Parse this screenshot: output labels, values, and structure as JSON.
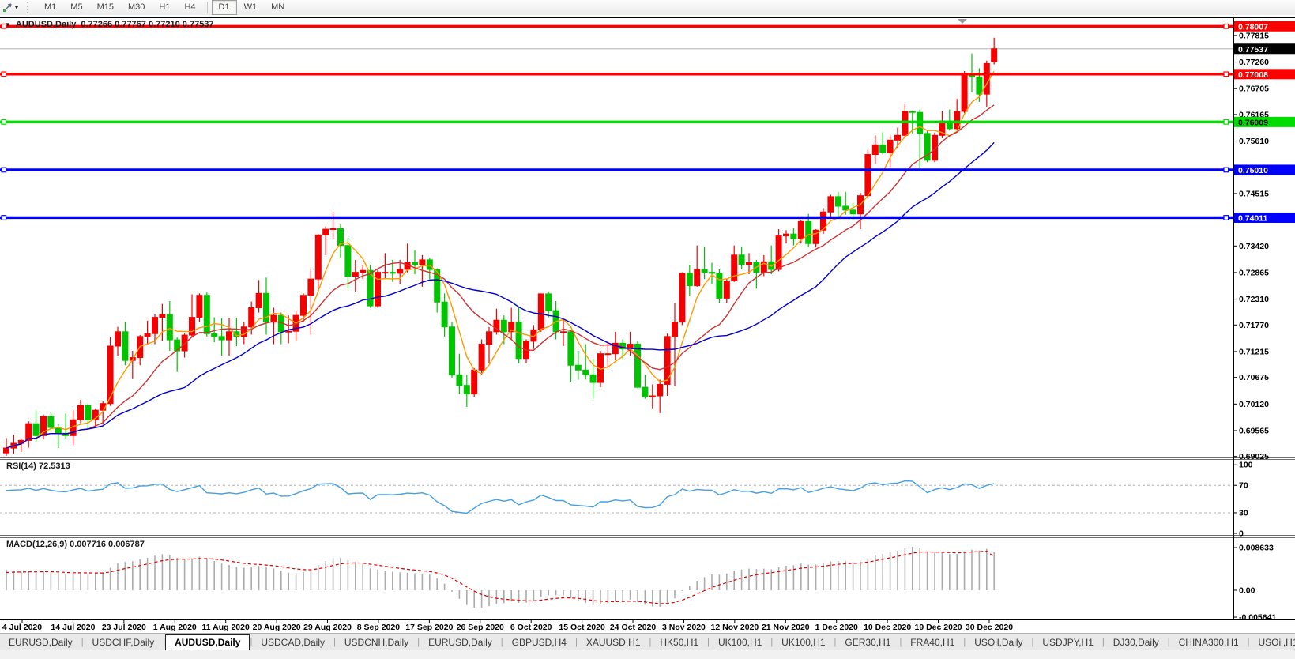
{
  "toolbar": {
    "timeframes": [
      "M1",
      "M5",
      "M15",
      "M30",
      "H1",
      "H4",
      "D1",
      "W1",
      "MN"
    ],
    "active_timeframe": "D1"
  },
  "icons": {
    "cursor_tool": "cursor-icon",
    "caret_down": "▾",
    "title_marker": "▼",
    "shift_marker": "▼",
    "tab_separator": "|",
    "scroll_left": "◄",
    "scroll_right": "►"
  },
  "chart": {
    "title": {
      "symbol": "AUDUSD,Daily",
      "ohlc": "0.77266 0.77767 0.77210 0.77537"
    },
    "price_axis": {
      "ticks": [
        "0.77815",
        "0.77260",
        "0.76705",
        "0.76165",
        "0.75610",
        "0.74515",
        "0.73420",
        "0.72865",
        "0.72310",
        "0.71770",
        "0.71215",
        "0.70675",
        "0.70120",
        "0.69565",
        "0.69025"
      ],
      "current_price": "0.77537"
    },
    "h_lines": [
      {
        "label": "0.78007",
        "value": 0.78007,
        "color": "#ff0000",
        "text": "#ffffff"
      },
      {
        "label": "0.77008",
        "value": 0.77008,
        "color": "#ff0000",
        "text": "#ffffff"
      },
      {
        "label": "0.76009",
        "value": 0.76009,
        "color": "#00dc00",
        "text": "#000000"
      },
      {
        "label": "0.75010",
        "value": 0.7501,
        "color": "#0000ff",
        "text": "#ffffff"
      },
      {
        "label": "0.74011",
        "value": 0.74011,
        "color": "#0000ff",
        "text": "#ffffff"
      }
    ],
    "date_axis": [
      "4 Jul 2020",
      "14 Jul 2020",
      "23 Jul 2020",
      "1 Aug 2020",
      "11 Aug 2020",
      "20 Aug 2020",
      "29 Aug 2020",
      "8 Sep 2020",
      "17 Sep 2020",
      "26 Sep 2020",
      "6 Oct 2020",
      "15 Oct 2020",
      "24 Oct 2020",
      "3 Nov 2020",
      "12 Nov 2020",
      "21 Nov 2020",
      "1 Dec 2020",
      "10 Dec 2020",
      "19 Dec 2020",
      "30 Dec 2020"
    ]
  },
  "rsi": {
    "label": "RSI(14) 72.5313",
    "period": 14,
    "value": 72.5313,
    "levels": [
      70,
      30
    ],
    "axis": [
      "100",
      "70",
      "30",
      "0"
    ]
  },
  "macd": {
    "label": "MACD(12,26,9) 0.007716 0.006787",
    "macd": 0.007716,
    "signal": 0.006787,
    "axis_top": "0.008633",
    "axis_zero": "0.00",
    "axis_bottom": "-0.005641"
  },
  "tabs": {
    "items": [
      "EURUSD,Daily",
      "USDCHF,Daily",
      "AUDUSD,Daily",
      "USDCAD,Daily",
      "USDCNH,Daily",
      "EURUSD,Daily",
      "GBPUSD,H4",
      "XAUUSD,H1",
      "HK50,H1",
      "UK100,H1",
      "UK100,H1",
      "GER30,H1",
      "FRA40,H1",
      "USOil,Daily",
      "USDJPY,H1",
      "DJ30,Daily",
      "CHINA300,H1",
      "USOil,H1"
    ],
    "active_index": 2
  },
  "colors": {
    "candle_up": "#f40000",
    "candle_down": "#00c400",
    "ma_fast": "#ff9900",
    "ma_mid": "#cd3333",
    "ma_slow": "#0000cc",
    "rsi_line": "#44a0e0",
    "rsi_level": "#b5b5b5",
    "macd_hist": "#ababab",
    "macd_signal": "#e00000",
    "bid_line": "#c0c0c0",
    "bid_badge": "#000000"
  },
  "chart_data": {
    "type": "candlestick",
    "symbol": "AUDUSD",
    "timeframe": "Daily",
    "overlays": [
      {
        "name": "SMA fast",
        "period": 5,
        "color_key": "ma_fast"
      },
      {
        "name": "SMA mid",
        "period": 12,
        "color_key": "ma_mid"
      },
      {
        "name": "SMA slow",
        "period": 25,
        "color_key": "ma_slow"
      }
    ],
    "ylim": [
      0.6902,
      0.7816
    ],
    "candles": [
      [
        "2020-07-01",
        0.691,
        0.6941,
        0.6904,
        0.692
      ],
      [
        "2020-07-02",
        0.692,
        0.6948,
        0.6908,
        0.693
      ],
      [
        "2020-07-03",
        0.693,
        0.694,
        0.6912,
        0.6936
      ],
      [
        "2020-07-06",
        0.6936,
        0.6976,
        0.6921,
        0.6971
      ],
      [
        "2020-07-07",
        0.6971,
        0.6998,
        0.6934,
        0.6946
      ],
      [
        "2020-07-08",
        0.6946,
        0.699,
        0.6938,
        0.6986
      ],
      [
        "2020-07-09",
        0.6986,
        0.6996,
        0.6954,
        0.6963
      ],
      [
        "2020-07-10",
        0.6963,
        0.6971,
        0.692,
        0.6951
      ],
      [
        "2020-07-13",
        0.6951,
        0.6992,
        0.694,
        0.6946
      ],
      [
        "2020-07-14",
        0.6946,
        0.6999,
        0.6926,
        0.6979
      ],
      [
        "2020-07-15",
        0.6979,
        0.7021,
        0.6972,
        0.7009
      ],
      [
        "2020-07-16",
        0.7009,
        0.7013,
        0.6961,
        0.6979
      ],
      [
        "2020-07-17",
        0.6979,
        0.7003,
        0.6963,
        0.6999
      ],
      [
        "2020-07-20",
        0.6999,
        0.7019,
        0.6969,
        0.7013
      ],
      [
        "2020-07-21",
        0.7013,
        0.7152,
        0.7008,
        0.7133
      ],
      [
        "2020-07-22",
        0.7133,
        0.7173,
        0.7113,
        0.7163
      ],
      [
        "2020-07-23",
        0.7163,
        0.7183,
        0.7093,
        0.7103
      ],
      [
        "2020-07-24",
        0.7103,
        0.7123,
        0.7064,
        0.7109
      ],
      [
        "2020-07-27",
        0.7109,
        0.7156,
        0.7093,
        0.7153
      ],
      [
        "2020-07-28",
        0.7153,
        0.7186,
        0.7136,
        0.7159
      ],
      [
        "2020-07-29",
        0.7159,
        0.7199,
        0.7137,
        0.7193
      ],
      [
        "2020-07-30",
        0.7193,
        0.7221,
        0.7143,
        0.7199
      ],
      [
        "2020-07-31",
        0.7199,
        0.7227,
        0.7123,
        0.7146
      ],
      [
        "2020-08-03",
        0.7146,
        0.7151,
        0.7079,
        0.7123
      ],
      [
        "2020-08-04",
        0.7123,
        0.7159,
        0.7109,
        0.7156
      ],
      [
        "2020-08-05",
        0.7156,
        0.7241,
        0.7151,
        0.7193
      ],
      [
        "2020-08-06",
        0.7193,
        0.7243,
        0.7183,
        0.7239
      ],
      [
        "2020-08-07",
        0.7239,
        0.7245,
        0.7153,
        0.7159
      ],
      [
        "2020-08-10",
        0.7159,
        0.7193,
        0.7141,
        0.7153
      ],
      [
        "2020-08-11",
        0.7153,
        0.7191,
        0.7113,
        0.7146
      ],
      [
        "2020-08-12",
        0.7146,
        0.7192,
        0.7113,
        0.7163
      ],
      [
        "2020-08-13",
        0.7163,
        0.7192,
        0.7133,
        0.7153
      ],
      [
        "2020-08-14",
        0.7153,
        0.7183,
        0.7137,
        0.7173
      ],
      [
        "2020-08-17",
        0.7173,
        0.7226,
        0.7157,
        0.7213
      ],
      [
        "2020-08-18",
        0.7213,
        0.7271,
        0.7203,
        0.7243
      ],
      [
        "2020-08-19",
        0.7243,
        0.7276,
        0.7157,
        0.7183
      ],
      [
        "2020-08-20",
        0.7183,
        0.7213,
        0.7137,
        0.7197
      ],
      [
        "2020-08-21",
        0.7197,
        0.7203,
        0.7137,
        0.7163
      ],
      [
        "2020-08-24",
        0.7163,
        0.7197,
        0.7139,
        0.7164
      ],
      [
        "2020-08-25",
        0.7164,
        0.7207,
        0.7143,
        0.7197
      ],
      [
        "2020-08-26",
        0.7197,
        0.7243,
        0.7183,
        0.7239
      ],
      [
        "2020-08-27",
        0.7239,
        0.7293,
        0.7157,
        0.7273
      ],
      [
        "2020-08-28",
        0.7273,
        0.7367,
        0.7253,
        0.7365
      ],
      [
        "2020-08-31",
        0.7365,
        0.7383,
        0.7323,
        0.7377
      ],
      [
        "2020-09-01",
        0.7377,
        0.7414,
        0.7357,
        0.7378
      ],
      [
        "2020-09-02",
        0.7378,
        0.7387,
        0.7317,
        0.7343
      ],
      [
        "2020-09-03",
        0.7343,
        0.7359,
        0.7253,
        0.7279
      ],
      [
        "2020-09-04",
        0.7279,
        0.7313,
        0.7247,
        0.7287
      ],
      [
        "2020-09-07",
        0.7287,
        0.7303,
        0.7273,
        0.7291
      ],
      [
        "2020-09-08",
        0.7291,
        0.7303,
        0.7213,
        0.7217
      ],
      [
        "2020-09-09",
        0.7217,
        0.7293,
        0.7213,
        0.7287
      ],
      [
        "2020-09-10",
        0.7287,
        0.7327,
        0.7273,
        0.7287
      ],
      [
        "2020-09-11",
        0.7287,
        0.7313,
        0.7267,
        0.7285
      ],
      [
        "2020-09-14",
        0.7285,
        0.7313,
        0.7263,
        0.7293
      ],
      [
        "2020-09-15",
        0.7293,
        0.7347,
        0.7287,
        0.7307
      ],
      [
        "2020-09-16",
        0.7307,
        0.7333,
        0.7283,
        0.7303
      ],
      [
        "2020-09-17",
        0.7303,
        0.7323,
        0.7257,
        0.7313
      ],
      [
        "2020-09-18",
        0.7313,
        0.7317,
        0.7273,
        0.7293
      ],
      [
        "2020-09-21",
        0.7293,
        0.7295,
        0.7203,
        0.7225
      ],
      [
        "2020-09-22",
        0.7225,
        0.7243,
        0.7153,
        0.7173
      ],
      [
        "2020-09-23",
        0.7173,
        0.7183,
        0.7067,
        0.7073
      ],
      [
        "2020-09-24",
        0.7073,
        0.7117,
        0.7033,
        0.7051
      ],
      [
        "2020-09-25",
        0.7051,
        0.7073,
        0.7006,
        0.7033
      ],
      [
        "2020-09-28",
        0.7033,
        0.7087,
        0.7027,
        0.7083
      ],
      [
        "2020-09-29",
        0.7083,
        0.7147,
        0.7073,
        0.7137
      ],
      [
        "2020-09-30",
        0.7137,
        0.7173,
        0.7097,
        0.7163
      ],
      [
        "2020-10-01",
        0.7163,
        0.7211,
        0.7157,
        0.7187
      ],
      [
        "2020-10-02",
        0.7187,
        0.7197,
        0.7137,
        0.7163
      ],
      [
        "2020-10-05",
        0.7163,
        0.7213,
        0.7147,
        0.7183
      ],
      [
        "2020-10-06",
        0.7183,
        0.7213,
        0.7097,
        0.7107
      ],
      [
        "2020-10-07",
        0.7107,
        0.7147,
        0.7097,
        0.7143
      ],
      [
        "2020-10-08",
        0.7143,
        0.7177,
        0.7127,
        0.7167
      ],
      [
        "2020-10-09",
        0.7167,
        0.7243,
        0.7163,
        0.7242
      ],
      [
        "2020-10-12",
        0.7242,
        0.7247,
        0.7193,
        0.7207
      ],
      [
        "2020-10-13",
        0.7207,
        0.7227,
        0.7147,
        0.7163
      ],
      [
        "2020-10-14",
        0.7163,
        0.7187,
        0.7133,
        0.7163
      ],
      [
        "2020-10-15",
        0.7163,
        0.7167,
        0.7057,
        0.7093
      ],
      [
        "2020-10-16",
        0.7093,
        0.7123,
        0.7063,
        0.7083
      ],
      [
        "2020-10-19",
        0.7083,
        0.7137,
        0.7063,
        0.7073
      ],
      [
        "2020-10-20",
        0.7073,
        0.7107,
        0.7023,
        0.7057
      ],
      [
        "2020-10-21",
        0.7057,
        0.7123,
        0.7047,
        0.7117
      ],
      [
        "2020-10-22",
        0.7117,
        0.7143,
        0.7087,
        0.7117
      ],
      [
        "2020-10-23",
        0.7117,
        0.7163,
        0.7103,
        0.7139
      ],
      [
        "2020-10-26",
        0.7139,
        0.7147,
        0.7107,
        0.7127
      ],
      [
        "2020-10-27",
        0.7127,
        0.7163,
        0.7113,
        0.7137
      ],
      [
        "2020-10-28",
        0.7137,
        0.7143,
        0.7045,
        0.7047
      ],
      [
        "2020-10-29",
        0.7047,
        0.7073,
        0.7023,
        0.7027
      ],
      [
        "2020-10-30",
        0.7027,
        0.7053,
        0.7003,
        0.7029
      ],
      [
        "2020-11-02",
        0.7029,
        0.7063,
        0.6993,
        0.7053
      ],
      [
        "2020-11-03",
        0.7053,
        0.7159,
        0.7029,
        0.7153
      ],
      [
        "2020-11-04",
        0.7153,
        0.7223,
        0.7049,
        0.7183
      ],
      [
        "2020-11-05",
        0.7183,
        0.7287,
        0.7177,
        0.7285
      ],
      [
        "2020-11-06",
        0.7285,
        0.7303,
        0.7237,
        0.7259
      ],
      [
        "2020-11-09",
        0.7259,
        0.7343,
        0.7257,
        0.7293
      ],
      [
        "2020-11-10",
        0.7293,
        0.7341,
        0.7273,
        0.7287
      ],
      [
        "2020-11-11",
        0.7287,
        0.7307,
        0.7263,
        0.7285
      ],
      [
        "2020-11-12",
        0.7285,
        0.7293,
        0.7223,
        0.7233
      ],
      [
        "2020-11-13",
        0.7233,
        0.7273,
        0.7223,
        0.7269
      ],
      [
        "2020-11-16",
        0.7269,
        0.7343,
        0.7267,
        0.7323
      ],
      [
        "2020-11-17",
        0.7323,
        0.7341,
        0.7293,
        0.7303
      ],
      [
        "2020-11-18",
        0.7303,
        0.7327,
        0.7283,
        0.7307
      ],
      [
        "2020-11-19",
        0.7307,
        0.7313,
        0.7253,
        0.7287
      ],
      [
        "2020-11-20",
        0.7287,
        0.7323,
        0.7279,
        0.7309
      ],
      [
        "2020-11-23",
        0.7309,
        0.7343,
        0.7283,
        0.7293
      ],
      [
        "2020-11-24",
        0.7293,
        0.7377,
        0.7289,
        0.7363
      ],
      [
        "2020-11-25",
        0.7363,
        0.7375,
        0.7347,
        0.7367
      ],
      [
        "2020-11-26",
        0.7367,
        0.7379,
        0.7343,
        0.7357
      ],
      [
        "2020-11-27",
        0.7357,
        0.7397,
        0.7347,
        0.7393
      ],
      [
        "2020-11-30",
        0.7393,
        0.7409,
        0.7339,
        0.7347
      ],
      [
        "2020-12-01",
        0.7347,
        0.7377,
        0.7339,
        0.7375
      ],
      [
        "2020-12-02",
        0.7375,
        0.7421,
        0.7367,
        0.7413
      ],
      [
        "2020-12-03",
        0.7413,
        0.7449,
        0.7403,
        0.7445
      ],
      [
        "2020-12-04",
        0.7445,
        0.7455,
        0.7403,
        0.7425
      ],
      [
        "2020-12-07",
        0.7425,
        0.7455,
        0.7407,
        0.7417
      ],
      [
        "2020-12-08",
        0.7417,
        0.7433,
        0.7397,
        0.7409
      ],
      [
        "2020-12-09",
        0.7409,
        0.7453,
        0.7377,
        0.7447
      ],
      [
        "2020-12-10",
        0.7447,
        0.7543,
        0.7443,
        0.7533
      ],
      [
        "2020-12-11",
        0.7533,
        0.7573,
        0.7513,
        0.7553
      ],
      [
        "2020-12-14",
        0.7553,
        0.7579,
        0.7533,
        0.7537
      ],
      [
        "2020-12-15",
        0.7537,
        0.7573,
        0.7507,
        0.7563
      ],
      [
        "2020-12-16",
        0.7563,
        0.7589,
        0.7547,
        0.7573
      ],
      [
        "2020-12-17",
        0.7573,
        0.7639,
        0.7567,
        0.7623
      ],
      [
        "2020-12-18",
        0.7623,
        0.7625,
        0.7577,
        0.7621
      ],
      [
        "2020-12-21",
        0.7621,
        0.7627,
        0.7506,
        0.7577
      ],
      [
        "2020-12-22",
        0.7577,
        0.7583,
        0.7517,
        0.7521
      ],
      [
        "2020-12-23",
        0.7521,
        0.7579,
        0.7517,
        0.7573
      ],
      [
        "2020-12-24",
        0.7573,
        0.7623,
        0.7567,
        0.7603
      ],
      [
        "2020-12-28",
        0.7603,
        0.7627,
        0.7583,
        0.7587
      ],
      [
        "2020-12-29",
        0.7587,
        0.7649,
        0.7583,
        0.7623
      ],
      [
        "2020-12-30",
        0.7623,
        0.7707,
        0.7619,
        0.7703
      ],
      [
        "2020-12-31",
        0.7703,
        0.7744,
        0.7663,
        0.7695
      ],
      [
        "2021-01-04",
        0.7695,
        0.7713,
        0.7643,
        0.7659
      ],
      [
        "2021-01-05",
        0.7659,
        0.7729,
        0.7633,
        0.7723
      ],
      [
        "2021-01-06",
        0.77266,
        0.77767,
        0.7721,
        0.77537
      ]
    ]
  }
}
